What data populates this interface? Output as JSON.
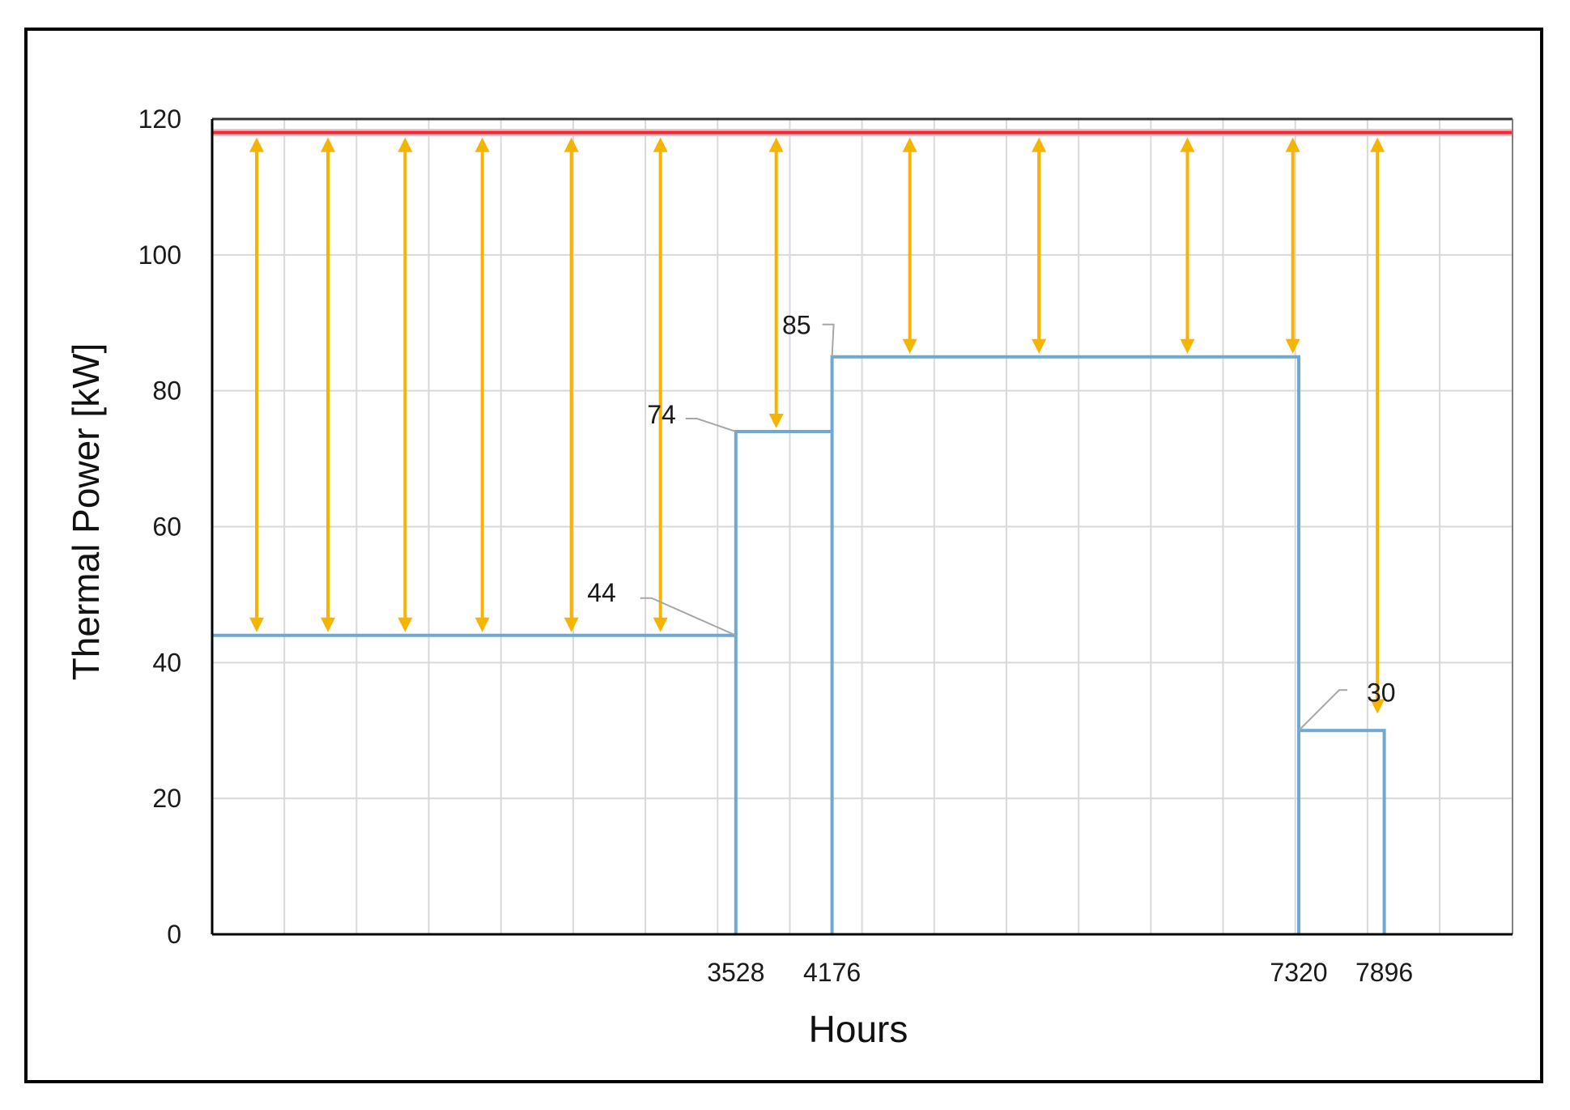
{
  "chart_data": {
    "type": "line",
    "title": "",
    "xlabel": "Hours",
    "ylabel": "Thermal Power [kW]",
    "ylim": [
      0,
      120
    ],
    "xlim": [
      0,
      8760
    ],
    "yticks": [
      "0",
      "20",
      "40",
      "60",
      "80",
      "100",
      "120"
    ],
    "xticks": [
      {
        "x": 3528,
        "label": "3528"
      },
      {
        "x": 4176,
        "label": "4176"
      },
      {
        "x": 7320,
        "label": "7320"
      },
      {
        "x": 7896,
        "label": "7896"
      }
    ],
    "grid": true,
    "colors": {
      "demand": "#6fa8d0",
      "capacity": "#ee2b3a",
      "arrows": "#f5b400",
      "grid": "#d9d9d9",
      "axis": "#000000"
    },
    "capacity_line": {
      "value": 118
    },
    "series": [
      {
        "step_segments": [
          {
            "x_start": 0,
            "x_end": 3528,
            "y": 44
          },
          {
            "x_start": 3528,
            "x_end": 4176,
            "y": 74
          },
          {
            "x_start": 4176,
            "x_end": 7320,
            "y": 85
          },
          {
            "x_start": 7320,
            "x_end": 7896,
            "y": 30
          }
        ]
      }
    ],
    "data_labels": [
      {
        "text": "44",
        "x": 3528,
        "y": 44
      },
      {
        "text": "74",
        "x": 3528,
        "y": 74
      },
      {
        "text": "85",
        "x": 4176,
        "y": 85
      },
      {
        "text": "30",
        "x": 7320,
        "y": 30
      }
    ],
    "arrows": [
      {
        "x": 300,
        "y_top": 118,
        "y_bottom": 44
      },
      {
        "x": 780,
        "y_top": 118,
        "y_bottom": 44
      },
      {
        "x": 1300,
        "y_top": 118,
        "y_bottom": 44
      },
      {
        "x": 1820,
        "y_top": 118,
        "y_bottom": 44
      },
      {
        "x": 2420,
        "y_top": 118,
        "y_bottom": 44
      },
      {
        "x": 3020,
        "y_top": 118,
        "y_bottom": 44
      },
      {
        "x": 3800,
        "y_top": 118,
        "y_bottom": 74
      },
      {
        "x": 4700,
        "y_top": 118,
        "y_bottom": 85
      },
      {
        "x": 5570,
        "y_top": 118,
        "y_bottom": 85
      },
      {
        "x": 6570,
        "y_top": 118,
        "y_bottom": 85
      },
      {
        "x": 7280,
        "y_top": 118,
        "y_bottom": 85
      },
      {
        "x": 7850,
        "y_top": 118,
        "y_bottom": 32
      }
    ]
  }
}
